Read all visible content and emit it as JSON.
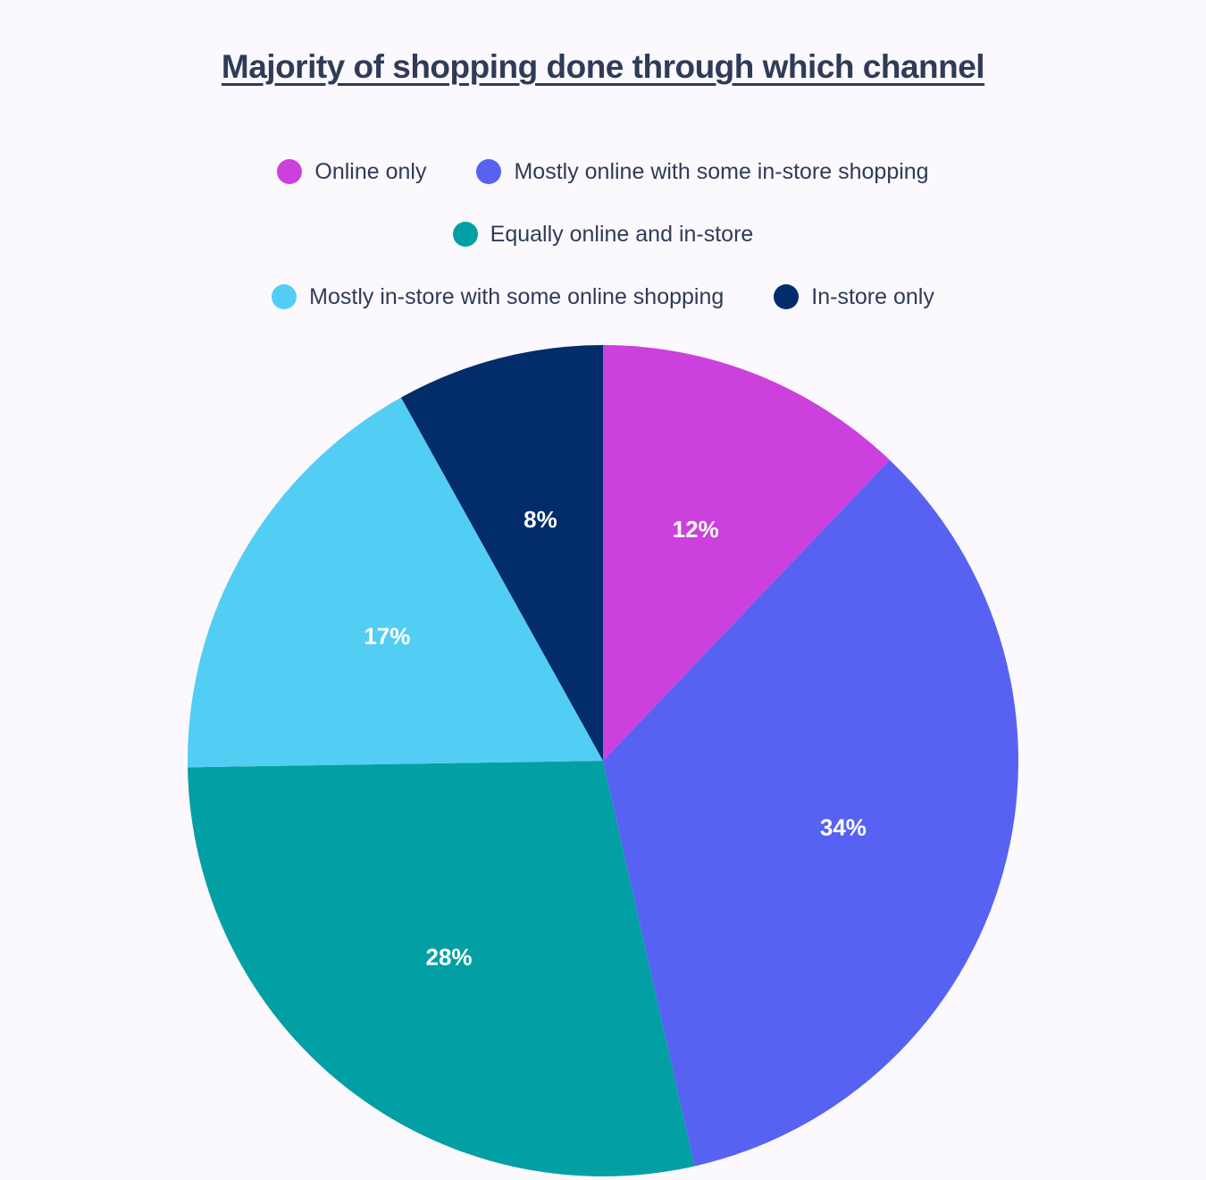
{
  "chart_data": {
    "type": "pie",
    "title": "Majority of shopping done through which channel",
    "legend_placement": "top",
    "categories": [
      "Online only",
      "Mostly online with some in-store shopping",
      "Equally online and in-store",
      "Mostly in-store with some online shopping",
      "In-store only"
    ],
    "values": [
      12,
      34,
      28,
      17,
      8
    ],
    "labels": [
      "12%",
      "34%",
      "28%",
      "17%",
      "8%"
    ],
    "colors": [
      "#cc40dd",
      "#5762f2",
      "#02a0a4",
      "#52cef4",
      "#032c6b"
    ]
  }
}
